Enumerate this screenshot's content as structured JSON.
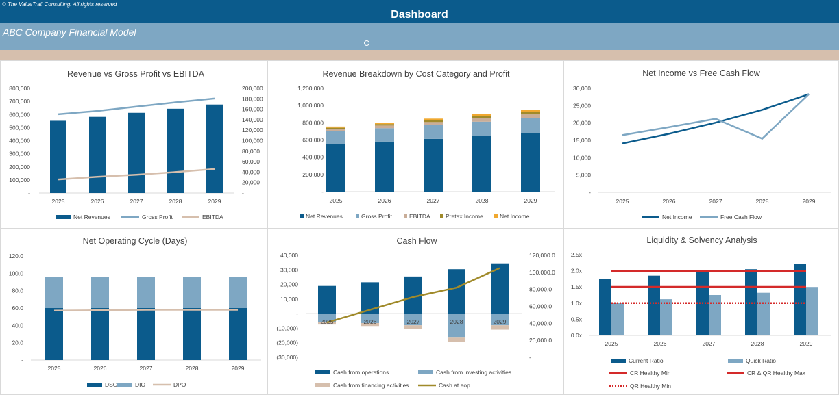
{
  "header": {
    "copyright": "© The ValueTrail Consulting. All rights reserved",
    "title": "Dashboard",
    "model_title": "ABC Company Financial Model"
  },
  "colors": {
    "dark_blue": "#0b5b8c",
    "light_blue": "#7ea7c3",
    "tan": "#d6bfad",
    "olive": "#a08a2a",
    "gold": "#f0a830",
    "red": "#d42a2a"
  },
  "chart_data": [
    {
      "id": "rev",
      "type": "bar",
      "title": "Revenue vs Gross Profit vs EBITDA",
      "categories": [
        "2025",
        "2026",
        "2027",
        "2028",
        "2029"
      ],
      "ylim": [
        0,
        800000
      ],
      "y_ticks": [
        "-",
        "100,000",
        "200,000",
        "300,000",
        "400,000",
        "500,000",
        "600,000",
        "700,000",
        "800,000"
      ],
      "y2lim": [
        0,
        200000
      ],
      "y2_ticks": [
        "-",
        "20,000",
        "40,000",
        "60,000",
        "80,000",
        "100,000",
        "120,000",
        "140,000",
        "160,000",
        "180,000",
        "200,000"
      ],
      "series": [
        {
          "name": "Net Revenues",
          "kind": "bar",
          "axis": "primary",
          "color": "#0b5b8c",
          "values": [
            552000,
            582000,
            613000,
            644000,
            676000
          ]
        },
        {
          "name": "Gross Profit",
          "kind": "line",
          "axis": "primary",
          "color": "#7ea7c3",
          "values": [
            602000,
            627000,
            660000,
            693000,
            722000
          ]
        },
        {
          "name": "EBITDA",
          "kind": "line",
          "axis": "secondary",
          "color": "#d6bfad",
          "values": [
            26000,
            31000,
            35000,
            40000,
            46000
          ]
        }
      ],
      "legend": "bottom"
    },
    {
      "id": "breakdown",
      "type": "bar",
      "stacked": true,
      "title": "Revenue Breakdown by Cost Category and Profit",
      "categories": [
        "2025",
        "2026",
        "2027",
        "2028",
        "2029"
      ],
      "ylim": [
        0,
        1200000
      ],
      "y_ticks": [
        "-",
        "200,000",
        "400,000",
        "600,000",
        "800,000",
        "1,000,000",
        "1,200,000"
      ],
      "series": [
        {
          "name": "Net Revenues",
          "color": "#0b5b8c",
          "values": [
            552000,
            582000,
            613000,
            644000,
            676000
          ]
        },
        {
          "name": "Gross Profit",
          "color": "#7ea7c3",
          "values": [
            150000,
            155000,
            160000,
            168000,
            175000
          ]
        },
        {
          "name": "EBITDA",
          "color": "#c9ad98",
          "values": [
            26000,
            31000,
            35000,
            40000,
            46000
          ]
        },
        {
          "name": "Pretax Income",
          "color": "#a08a2a",
          "values": [
            14000,
            17000,
            20000,
            24000,
            28000
          ]
        },
        {
          "name": "Net Income",
          "color": "#f0a830",
          "values": [
            14000,
            17000,
            20000,
            24000,
            28000
          ]
        }
      ],
      "legend": "bottom"
    },
    {
      "id": "ni",
      "type": "line",
      "title": "Net Income vs Free Cash Flow",
      "categories": [
        "2025",
        "2026",
        "2027",
        "2028",
        "2029"
      ],
      "ylim": [
        0,
        30000
      ],
      "y_ticks": [
        "-",
        "5,000",
        "10,000",
        "15,000",
        "20,000",
        "25,000",
        "30,000"
      ],
      "series": [
        {
          "name": "Net Income",
          "color": "#0b5b8c",
          "values": [
            14100,
            16900,
            20100,
            23800,
            28300
          ]
        },
        {
          "name": "Free Cash Flow",
          "color": "#7ea7c3",
          "values": [
            16500,
            18800,
            21200,
            15500,
            28300
          ]
        }
      ],
      "legend": "bottom"
    },
    {
      "id": "cycle",
      "type": "bar",
      "title": "Net Operating Cycle (Days)",
      "categories": [
        "2025",
        "2026",
        "2027",
        "2028",
        "2029"
      ],
      "ylim": [
        0,
        120
      ],
      "y_ticks": [
        "-",
        "20.0",
        "40.0",
        "60.0",
        "80.0",
        "100.0",
        "120.0"
      ],
      "series": [
        {
          "name": "DSO",
          "kind": "bar",
          "color": "#0b5b8c",
          "values": [
            60,
            60,
            60,
            60,
            60
          ]
        },
        {
          "name": "DIO",
          "kind": "bar",
          "color": "#7ea7c3",
          "values": [
            36,
            36,
            36,
            36,
            36
          ]
        },
        {
          "name": "DPO",
          "kind": "line",
          "color": "#d6bfad",
          "values": [
            57,
            57.5,
            58,
            58,
            58
          ]
        }
      ],
      "legend": "bottom"
    },
    {
      "id": "cash",
      "type": "bar",
      "title": "Cash Flow",
      "categories": [
        "2025",
        "2026",
        "2027",
        "2028",
        "2029"
      ],
      "ylim": [
        -30000,
        40000
      ],
      "y_ticks": [
        "(30,000)",
        "(20,000)",
        "(10,000)",
        "-",
        "10,000",
        "20,000",
        "30,000",
        "40,000"
      ],
      "y2lim": [
        0,
        120000
      ],
      "y2_ticks": [
        "-",
        "20,000.0",
        "40,000.0",
        "60,000.0",
        "80,000.0",
        "100,000.0",
        "120,000.0"
      ],
      "series": [
        {
          "name": "Cash from operations",
          "kind": "bar",
          "color": "#0b5b8c",
          "values": [
            19000,
            21500,
            25500,
            30500,
            34500
          ]
        },
        {
          "name": "Cash from investing activities",
          "kind": "bar",
          "color": "#7ea7c3",
          "values": [
            -6000,
            -6500,
            -8000,
            -16500,
            -8000
          ]
        },
        {
          "name": "Cash from financing activities",
          "kind": "bar",
          "color": "#d6bfad",
          "values": [
            -1500,
            -2000,
            -2500,
            -3000,
            -3000
          ]
        },
        {
          "name": "Cash at eop",
          "kind": "line",
          "axis": "secondary",
          "color": "#a08a2a",
          "values": [
            41000,
            56000,
            71000,
            82000,
            105000
          ]
        }
      ],
      "legend": "bottom"
    },
    {
      "id": "liq",
      "type": "bar",
      "title": "Liquidity & Solvency Analysis",
      "categories": [
        "2025",
        "2026",
        "2027",
        "2028",
        "2029"
      ],
      "ylim": [
        0,
        2.5
      ],
      "y_ticks": [
        "0.0x",
        "0.5x",
        "1.0x",
        "1.5x",
        "2.0x",
        "2.5x"
      ],
      "series": [
        {
          "name": "Current Ratio",
          "kind": "bar",
          "color": "#0b5b8c",
          "values": [
            1.75,
            1.85,
            2.0,
            2.05,
            2.22
          ]
        },
        {
          "name": "Quick Ratio",
          "kind": "bar",
          "color": "#7ea7c3",
          "values": [
            1.0,
            1.12,
            1.25,
            1.32,
            1.5
          ]
        },
        {
          "name": "CR Healthy Min",
          "kind": "line",
          "color": "#d42a2a",
          "values": [
            1.5,
            1.5,
            1.5,
            1.5,
            1.5
          ]
        },
        {
          "name": "CR & QR Healthy Max",
          "kind": "line",
          "color": "#d42a2a",
          "values": [
            2.0,
            2.0,
            2.0,
            2.0,
            2.0
          ]
        },
        {
          "name": "QR Healthy Min",
          "kind": "dotted",
          "color": "#d42a2a",
          "values": [
            1.0,
            1.0,
            1.0,
            1.0,
            1.0
          ]
        }
      ],
      "legend": "bottom"
    }
  ]
}
